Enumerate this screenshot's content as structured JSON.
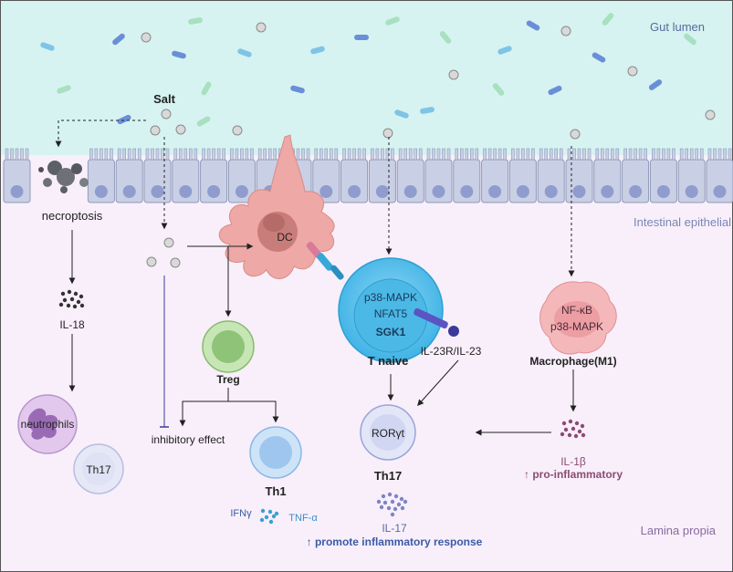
{
  "regions": {
    "lumen": "Gut lumen",
    "epithelium": "Intestinal epithelial",
    "lamina": "Lamina propia"
  },
  "labels": {
    "salt": "Salt",
    "necroptosis": "necroptosis",
    "il18": "IL-18",
    "neutrophils": "neutrophils",
    "th17_left": "Th17",
    "dc": "DC",
    "treg": "Treg",
    "inhibitory": "inhibitory effect",
    "th1": "Th1",
    "ifng": "IFNγ",
    "tnfa": "TNF-α",
    "tnaive_line1": "p38-MAPK",
    "tnaive_line2": "NFAT5",
    "tnaive_line3": "SGK1",
    "tnaive": "T naive",
    "il23": "IL-23R/IL-23",
    "roryt": "RORγt",
    "th17": "Th17",
    "il17": "IL-17",
    "promote": "↑ promote inflammatory response",
    "mac_line1": "NF-κB",
    "mac_line2": "p38-MAPK",
    "macrophage": "Macrophage(M1)",
    "il1b": "IL-1β",
    "proinflam": "↑ pro-inflammatory"
  },
  "colors": {
    "lumen_bg": "#d6f3f1",
    "lamina_bg": "#f8effa",
    "epithelial_cell": "#c9d0e6",
    "nucleus": "#8f9ccd",
    "dc": "#eea8a5",
    "tcell": "#5cc3ec",
    "treg": "#98c984",
    "th1": "#9fc6ee",
    "th17": "#c4cbeb",
    "neutrophil": "#c9a2da",
    "macrophage": "#f2b3b6",
    "il1b": "#8e4a73",
    "blue_text": "#3b5aa8"
  }
}
